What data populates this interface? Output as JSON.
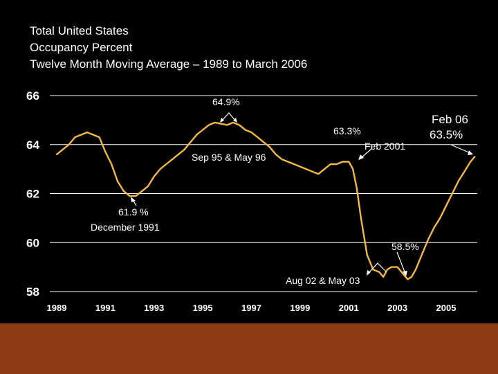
{
  "title": {
    "lines": [
      "Total United States",
      "Occupancy Percent",
      "Twelve Month Moving Average – 1989 to March 2006"
    ]
  },
  "colors": {
    "background": "#000000",
    "line": "#f5b942",
    "gridline": "#ffffff",
    "footer": "#8b3a12",
    "text": "#ffffff"
  },
  "chart_data": {
    "type": "line",
    "title": "Total United States Occupancy Percent, Twelve Month Moving Average – 1989 to March 2006",
    "xlabel": "",
    "ylabel": "",
    "xlim": [
      1989,
      2006.25
    ],
    "ylim": [
      58,
      66
    ],
    "yticks": [
      58,
      60,
      62,
      64,
      66
    ],
    "yticklabels": [
      "58",
      "60",
      "62",
      "64",
      "66"
    ],
    "xticks": [
      1989,
      1991,
      1993,
      1995,
      1997,
      1999,
      2001,
      2003,
      2005
    ],
    "xticklabels": [
      "1989",
      "1991",
      "1993",
      "1995",
      "1997",
      "1999",
      "2001",
      "2003",
      "2005"
    ],
    "grid": "horizontal",
    "series": [
      {
        "name": "Occupancy Percent (12-month moving average)",
        "x": [
          1989.0,
          1989.25,
          1989.5,
          1989.75,
          1990.0,
          1990.25,
          1990.5,
          1990.75,
          1991.0,
          1991.25,
          1991.5,
          1991.75,
          1992.0,
          1992.25,
          1992.5,
          1992.75,
          1993.0,
          1993.25,
          1993.5,
          1993.75,
          1994.0,
          1994.25,
          1994.5,
          1994.75,
          1995.0,
          1995.25,
          1995.5,
          1995.75,
          1996.0,
          1996.25,
          1996.5,
          1996.75,
          1997.0,
          1997.25,
          1997.5,
          1997.75,
          1998.0,
          1998.25,
          1998.5,
          1998.75,
          1999.0,
          1999.25,
          1999.5,
          1999.75,
          2000.0,
          2000.25,
          2000.5,
          2000.75,
          2001.0,
          2001.17,
          2001.33,
          2001.5,
          2001.75,
          2002.0,
          2002.25,
          2002.42,
          2002.58,
          2002.75,
          2003.0,
          2003.25,
          2003.42,
          2003.58,
          2003.75,
          2004.0,
          2004.25,
          2004.5,
          2004.75,
          2005.0,
          2005.25,
          2005.5,
          2005.75,
          2006.0,
          2006.17
        ],
        "values": [
          63.6,
          63.8,
          64.0,
          64.3,
          64.4,
          64.5,
          64.4,
          64.3,
          63.7,
          63.2,
          62.5,
          62.1,
          61.9,
          61.9,
          62.1,
          62.3,
          62.7,
          63.0,
          63.2,
          63.4,
          63.6,
          63.8,
          64.1,
          64.4,
          64.6,
          64.8,
          64.9,
          64.85,
          64.8,
          64.9,
          64.8,
          64.6,
          64.5,
          64.3,
          64.1,
          63.9,
          63.6,
          63.4,
          63.3,
          63.2,
          63.1,
          63.0,
          62.9,
          62.8,
          63.0,
          63.2,
          63.2,
          63.3,
          63.3,
          63.0,
          62.2,
          61.0,
          59.5,
          58.9,
          58.8,
          58.6,
          58.9,
          59.0,
          59.0,
          58.7,
          58.5,
          58.6,
          58.9,
          59.5,
          60.1,
          60.6,
          61.0,
          61.5,
          62.0,
          62.5,
          62.9,
          63.3,
          63.5
        ]
      }
    ],
    "annotations": [
      {
        "label": "64.9%",
        "x": 1996.0,
        "y": 64.9
      },
      {
        "label": "Sep 95 & May 96",
        "x": 1996.0,
        "y": 64.9
      },
      {
        "label": "61.9 %",
        "x": 1991.9,
        "y": 61.9
      },
      {
        "label": "December 1991",
        "x": 1991.9,
        "y": 61.9
      },
      {
        "label": "63.3%",
        "x": 2001.0,
        "y": 63.3
      },
      {
        "label": "Feb 2001",
        "x": 2001.1,
        "y": 63.3
      },
      {
        "label": "58.5%",
        "x": 2003.0,
        "y": 58.5
      },
      {
        "label": "Aug 02 & May 03",
        "x": 2003.0,
        "y": 58.5
      },
      {
        "label": "Feb 06",
        "x": 2006.1,
        "y": 63.5
      },
      {
        "label": "63.5%",
        "x": 2006.1,
        "y": 63.5
      }
    ]
  }
}
